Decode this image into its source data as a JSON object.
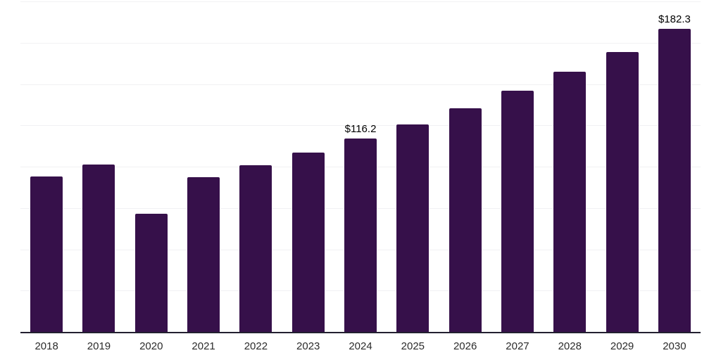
{
  "chart_data": {
    "type": "bar",
    "title": "",
    "xlabel": "",
    "ylabel": "",
    "categories": [
      "2018",
      "2019",
      "2020",
      "2021",
      "2022",
      "2023",
      "2024",
      "2025",
      "2026",
      "2027",
      "2028",
      "2029",
      "2030"
    ],
    "values": [
      93.2,
      100.4,
      71.0,
      92.8,
      100.1,
      107.8,
      116.2,
      124.7,
      134.4,
      144.9,
      156.4,
      168.3,
      182.3
    ],
    "data_labels": [
      null,
      null,
      null,
      null,
      null,
      null,
      "$116.2",
      null,
      null,
      null,
      null,
      null,
      "$182.3"
    ],
    "ylim": [
      0,
      198.6
    ],
    "grid": "horizontal",
    "gridline_count": 8,
    "legend": "none",
    "colors": {
      "bar": "#36104A",
      "gridline": "#F1F1F3",
      "axis_line": "#232030",
      "data_label": "#000000",
      "tick_label": "#2B2B2B",
      "background": "#FFFFFF"
    }
  }
}
